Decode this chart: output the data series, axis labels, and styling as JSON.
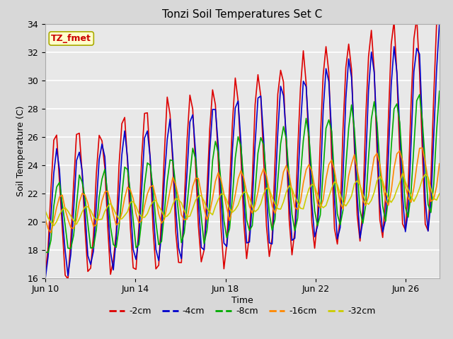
{
  "title": "Tonzi Soil Temperatures Set C",
  "xlabel": "Time",
  "ylabel": "Soil Temperature (C)",
  "ylim": [
    16,
    34
  ],
  "annotation_text": "TZ_fmet",
  "annotation_bg": "#ffffcc",
  "annotation_border": "#aaaa00",
  "annotation_text_color": "#cc0000",
  "fig_bg_color": "#d8d8d8",
  "plot_bg": "#e8e8e8",
  "series": [
    {
      "label": "-2cm",
      "color": "#dd0000",
      "lw": 1.2
    },
    {
      "label": "-4cm",
      "color": "#0000cc",
      "lw": 1.2
    },
    {
      "label": "-8cm",
      "color": "#00aa00",
      "lw": 1.2
    },
    {
      "label": "-16cm",
      "color": "#ff8800",
      "lw": 1.2
    },
    {
      "label": "-32cm",
      "color": "#cccc00",
      "lw": 1.2
    }
  ],
  "x_tick_labels": [
    "Jun 10",
    "Jun 14",
    "Jun 18",
    "Jun 22",
    "Jun 26"
  ],
  "x_tick_positions": [
    0,
    4,
    8,
    12,
    16
  ],
  "total_days": 17.5,
  "samples_per_day": 8,
  "grid_color": "#ffffff",
  "spine_color": "#aaaaaa"
}
